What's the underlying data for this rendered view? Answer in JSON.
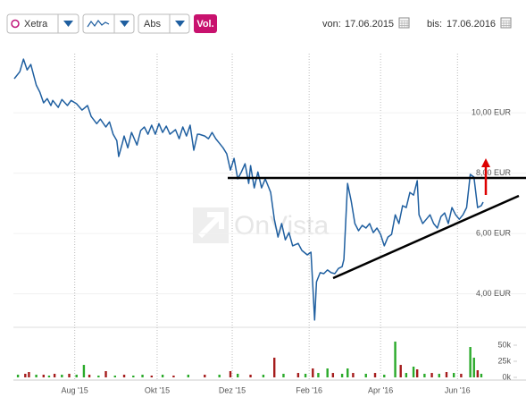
{
  "toolbar": {
    "exchange": "Xetra",
    "mode": "Abs",
    "volume_button": "Vol.",
    "from_label": "von:",
    "from_date": "17.06.2015",
    "to_label": "bis:",
    "to_date": "17.06.2016"
  },
  "chart_data": {
    "type": "line",
    "watermark": "OnVista",
    "color": "#1f5fa0",
    "x": [
      0,
      3,
      5,
      7,
      9,
      12,
      14,
      16,
      18,
      20,
      21,
      24,
      26,
      29,
      31,
      34,
      37,
      40,
      42,
      45,
      47,
      50,
      52,
      54,
      56,
      57,
      59,
      60,
      62,
      64,
      67,
      69,
      71,
      73,
      75,
      77,
      79,
      81,
      83,
      85,
      88,
      90,
      92,
      94,
      96,
      98,
      100,
      101,
      104,
      106,
      108,
      110,
      112,
      114,
      116,
      118,
      120,
      122,
      124,
      126,
      128,
      129,
      131,
      133,
      135,
      137,
      139,
      140,
      142,
      144,
      146,
      148,
      150,
      152,
      155,
      157,
      160,
      162,
      163,
      164,
      165,
      167,
      169,
      171,
      173,
      175,
      177,
      179,
      180,
      182,
      184,
      186,
      188,
      190,
      192,
      194,
      196,
      198,
      200,
      202,
      204,
      206,
      208,
      210,
      212,
      214,
      216,
      218,
      220,
      221,
      223,
      225,
      227,
      229,
      231,
      233,
      235,
      237,
      239,
      241,
      243,
      245,
      247,
      249,
      251,
      253,
      255,
      256
    ],
    "values": [
      11.13,
      11.36,
      11.78,
      11.42,
      11.6,
      10.92,
      10.68,
      10.33,
      10.47,
      10.24,
      10.41,
      10.18,
      10.44,
      10.24,
      10.41,
      10.3,
      10.09,
      10.24,
      9.88,
      9.64,
      9.79,
      9.53,
      9.7,
      9.29,
      9.08,
      8.55,
      8.99,
      9.23,
      8.84,
      9.35,
      8.93,
      9.41,
      9.53,
      9.29,
      9.59,
      9.29,
      9.64,
      9.35,
      9.56,
      9.29,
      9.44,
      9.14,
      9.53,
      9.23,
      9.59,
      8.76,
      9.29,
      9.29,
      9.23,
      9.14,
      9.35,
      9.14,
      8.99,
      8.84,
      8.64,
      8.1,
      8.49,
      7.81,
      8.04,
      8.31,
      7.66,
      8.25,
      7.51,
      8.04,
      7.51,
      7.81,
      7.51,
      7.36,
      6.47,
      5.88,
      6.33,
      5.79,
      6.03,
      5.59,
      5.67,
      5.44,
      5.29,
      5.38,
      4.25,
      3.13,
      4.4,
      4.7,
      4.67,
      4.79,
      4.7,
      4.67,
      4.84,
      4.9,
      5.14,
      7.66,
      7.07,
      6.33,
      6.09,
      6.27,
      6.18,
      6.33,
      6.03,
      6.18,
      5.97,
      5.59,
      5.88,
      5.97,
      6.62,
      6.33,
      6.92,
      6.86,
      7.36,
      7.27,
      7.75,
      6.62,
      6.33,
      6.47,
      6.62,
      6.33,
      6.18,
      6.56,
      6.68,
      6.33,
      6.86,
      6.62,
      6.47,
      6.62,
      6.86,
      7.96,
      7.87,
      6.86,
      6.92,
      7.04
    ],
    "xlim": [
      0,
      256
    ],
    "ylim": [
      2.92,
      11.96
    ],
    "xticks": [
      {
        "value": 33,
        "label": "Aug '15"
      },
      {
        "value": 78,
        "label": "Okt '15"
      },
      {
        "value": 119,
        "label": "Dez '15"
      },
      {
        "value": 161,
        "label": "Feb '16"
      },
      {
        "value": 200,
        "label": "Apr '16"
      },
      {
        "value": 242,
        "label": "Jun '16"
      }
    ],
    "yticks": [
      {
        "value": 4,
        "label": "4,00 EUR"
      },
      {
        "value": 6,
        "label": "6,00 EUR"
      },
      {
        "value": 8,
        "label": "8,00 EUR"
      },
      {
        "value": 10,
        "label": "10,00 EUR"
      }
    ],
    "grid": true,
    "volume": {
      "x": [
        2,
        6,
        8,
        12,
        16,
        19,
        22,
        26,
        30,
        34,
        38,
        41,
        46,
        50,
        55,
        60,
        65,
        70,
        75,
        81,
        87,
        95,
        104,
        112,
        118,
        122,
        129,
        136,
        142,
        147,
        155,
        159,
        163,
        166,
        171,
        174,
        179,
        182,
        185,
        192,
        197,
        202,
        208,
        211,
        214,
        218,
        220,
        224,
        228,
        232,
        236,
        240,
        244,
        249,
        251,
        253,
        255
      ],
      "values": [
        4200,
        5600,
        8300,
        4200,
        4200,
        2800,
        5600,
        4200,
        5600,
        4200,
        19400,
        4200,
        2800,
        9700,
        2800,
        4200,
        2800,
        4200,
        2800,
        4200,
        2800,
        4200,
        4200,
        4200,
        9700,
        5600,
        4200,
        4200,
        30600,
        5600,
        6900,
        5600,
        13900,
        6900,
        13900,
        6900,
        5600,
        13900,
        6900,
        5600,
        6900,
        4200,
        55600,
        19400,
        6900,
        16700,
        12500,
        5600,
        6900,
        5600,
        8300,
        6900,
        5600,
        47200,
        30600,
        11100,
        5600
      ],
      "colors": [
        "#2aaa2a",
        "#a51c1c",
        "#a51c1c",
        "#2aaa2a",
        "#a51c1c",
        "#2aaa2a",
        "#a51c1c",
        "#2aaa2a",
        "#a51c1c",
        "#2aaa2a",
        "#2aaa2a",
        "#a51c1c",
        "#2aaa2a",
        "#a51c1c",
        "#2aaa2a",
        "#a51c1c",
        "#2aaa2a",
        "#2aaa2a",
        "#a51c1c",
        "#2aaa2a",
        "#a51c1c",
        "#2aaa2a",
        "#a51c1c",
        "#2aaa2a",
        "#a51c1c",
        "#2aaa2a",
        "#a51c1c",
        "#2aaa2a",
        "#a51c1c",
        "#2aaa2a",
        "#a51c1c",
        "#2aaa2a",
        "#a51c1c",
        "#2aaa2a",
        "#2aaa2a",
        "#a51c1c",
        "#2aaa2a",
        "#2aaa2a",
        "#a51c1c",
        "#2aaa2a",
        "#a51c1c",
        "#2aaa2a",
        "#2aaa2a",
        "#a51c1c",
        "#2aaa2a",
        "#2aaa2a",
        "#a51c1c",
        "#2aaa2a",
        "#a51c1c",
        "#2aaa2a",
        "#a51c1c",
        "#2aaa2a",
        "#a51c1c",
        "#2aaa2a",
        "#2aaa2a",
        "#a51c1c",
        "#2aaa2a"
      ],
      "ylim": [
        0,
        75000
      ],
      "yticks": [
        {
          "value": 0,
          "label": "0k"
        },
        {
          "value": 25000,
          "label": "25k"
        },
        {
          "value": 50000,
          "label": "50k"
        }
      ]
    }
  }
}
